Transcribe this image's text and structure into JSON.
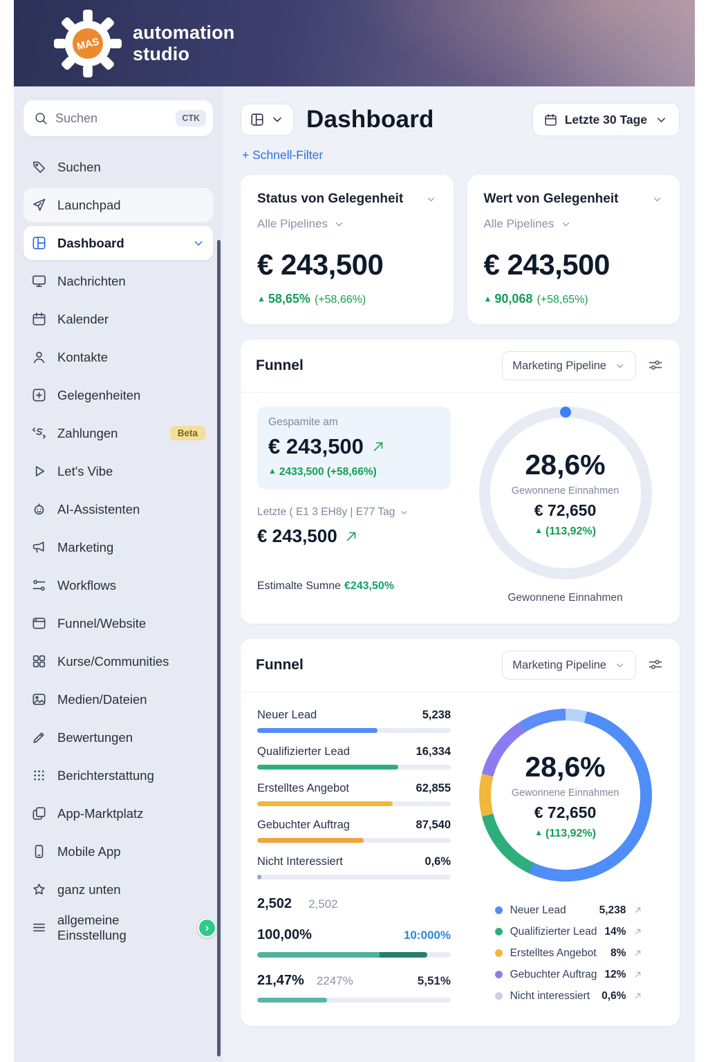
{
  "brand": {
    "gear_text": "MAS",
    "name_line1": "automation",
    "name_line2": "studio"
  },
  "glyphs": {
    "up_triangle": "▲",
    "chevron_right": "›"
  },
  "sidebar": {
    "search": {
      "placeholder": "Suchen",
      "shortcut": "CTK"
    },
    "items": [
      {
        "label": "Suchen"
      },
      {
        "label": "Launchpad"
      },
      {
        "label": "Dashboard"
      },
      {
        "label": "Nachrichten"
      },
      {
        "label": "Kalender"
      },
      {
        "label": "Kontakte"
      },
      {
        "label": "Gelegenheiten"
      },
      {
        "label": "Zahlungen",
        "badge": "Beta"
      },
      {
        "label": "Let's Vibe"
      },
      {
        "label": "AI-Assistenten"
      },
      {
        "label": "Marketing"
      },
      {
        "label": "Workflows"
      },
      {
        "label": "Funnel/Website"
      },
      {
        "label": "Kurse/Communities"
      },
      {
        "label": "Medien/Dateien"
      },
      {
        "label": "Bewertungen"
      },
      {
        "label": "Berichterstattung"
      },
      {
        "label": "App-Marktplatz"
      },
      {
        "label": "Mobile App"
      },
      {
        "label": "ganz unten"
      },
      {
        "label": "allgemeine Einsstellung"
      }
    ]
  },
  "header": {
    "title": "Dashboard",
    "date_range": "Letzte 30 Tage",
    "quick_filter": "+ Schnell-Filter"
  },
  "stats": [
    {
      "title": "Status von Gelegenheit",
      "pipeline": "Alle Pipelines",
      "value": "€ 243,500",
      "delta": "58,65%",
      "delta_sub": "(+58,66%)"
    },
    {
      "title": "Wert von Gelegenheit",
      "pipeline": "Alle Pipelines",
      "value": "€ 243,500",
      "delta": "90,068",
      "delta_sub": "(+58,65%)"
    }
  ],
  "funnel1": {
    "title": "Funnel",
    "pipeline": "Marketing Pipeline",
    "saved_label": "Gespamite am",
    "saved_value": "€ 243,500",
    "saved_delta": "2433,500 (+58,66%)",
    "period_label": "Letzte ( E1 3 EH8y | E77 Tag",
    "period_value": "€ 243,500",
    "estimate_label": "Estimalte Sumne",
    "estimate_value": "€243,50%",
    "gauge": {
      "percent": "28,6%",
      "label": "Gewonnene Einnahmen",
      "value": "€ 72,650",
      "delta": "(113,92%)",
      "caption": "Gewonnene Einnahmen",
      "accent_color": "#3b82f6"
    }
  },
  "funnel2": {
    "title": "Funnel",
    "pipeline": "Marketing Pipeline",
    "stages": [
      {
        "label": "Neuer Lead",
        "value": "5,238",
        "pct": 62,
        "color": "#4f8df9"
      },
      {
        "label": "Qualifizierter Lead",
        "value": "16,334",
        "pct": 73,
        "color": "#2fae7d"
      },
      {
        "label": "Erstelltes Angebot",
        "value": "62,855",
        "pct": 70,
        "color": "#f2b63c"
      },
      {
        "label": "Gebuchter Auftrag",
        "value": "87,540",
        "pct": 55,
        "color": "#f2a33c"
      },
      {
        "label": "Nicht Interessiert",
        "value": "0,6%",
        "pct": 2,
        "color": "#9aa7bd"
      }
    ],
    "totals": {
      "count_bold": "2,502",
      "count_gray": "2,502",
      "pct_bold": "100,00%",
      "pct_accent": "10:000%",
      "row2_bold": "21,47%",
      "row2_gray": "2247%",
      "row2_right": "5,51%"
    },
    "donut": {
      "percent": "28,6%",
      "label": "Gewonnene Einnahmen",
      "value": "€ 72,650",
      "delta": "(113,92%)"
    },
    "legend": [
      {
        "label": "Neuer Lead",
        "value": "5,238",
        "color": "#4f8df9"
      },
      {
        "label": "Qualifizierter Lead",
        "value": "14%",
        "color": "#2fae7d"
      },
      {
        "label": "Erstelltes Angebot",
        "value": "8%",
        "color": "#f2b63c"
      },
      {
        "label": "Gebuchter Auftrag",
        "value": "12%",
        "color": "#8b7cf0"
      },
      {
        "label": "Nicht interessiert",
        "value": "0,6%",
        "color": "#c9d2e3"
      }
    ]
  },
  "colors": {
    "accent_blue": "#2f6be0",
    "positive_green": "#149e55"
  }
}
